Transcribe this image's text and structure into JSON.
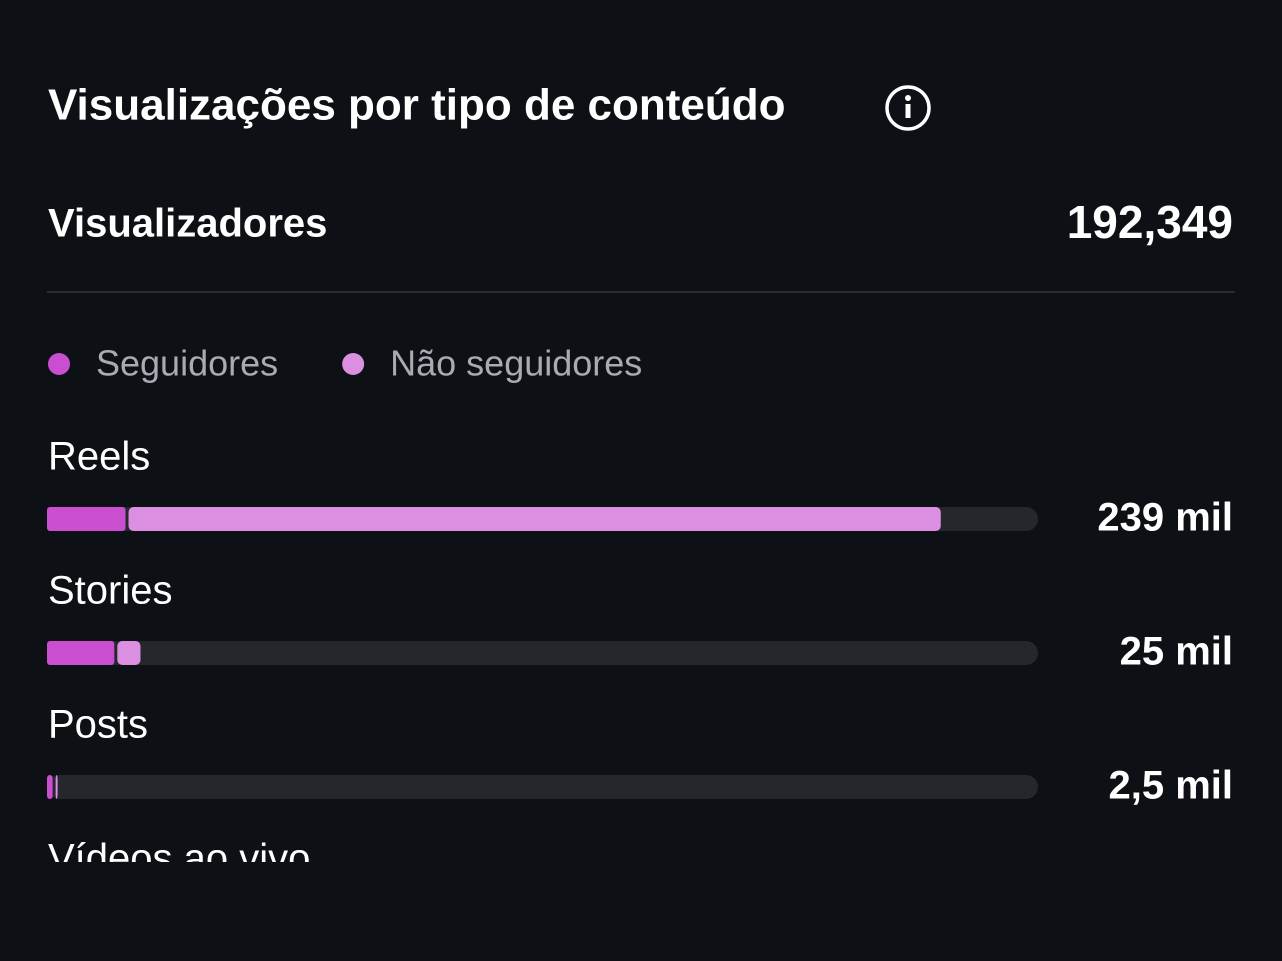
{
  "header": {
    "title": "Visualizações por tipo de conteúdo"
  },
  "summary": {
    "label": "Visualizadores",
    "value": "192,349"
  },
  "chart_data": {
    "type": "bar",
    "orientation": "horizontal",
    "stacked": true,
    "categories": [
      "Reels",
      "Stories",
      "Posts",
      "Vídeos ao vivo"
    ],
    "values": [
      239,
      25,
      2.5,
      null
    ],
    "value_labels": [
      "239 mil",
      "25 mil",
      "2,5 mil",
      null
    ],
    "series": [
      {
        "name": "Seguidores",
        "color": "#c94fd0",
        "values": [
          21,
          18,
          1.5,
          null
        ]
      },
      {
        "name": "Não seguidores",
        "color": "#dc8ee0",
        "values": [
          218,
          7,
          1,
          null
        ]
      }
    ],
    "xlim": [
      0,
      265
    ]
  }
}
